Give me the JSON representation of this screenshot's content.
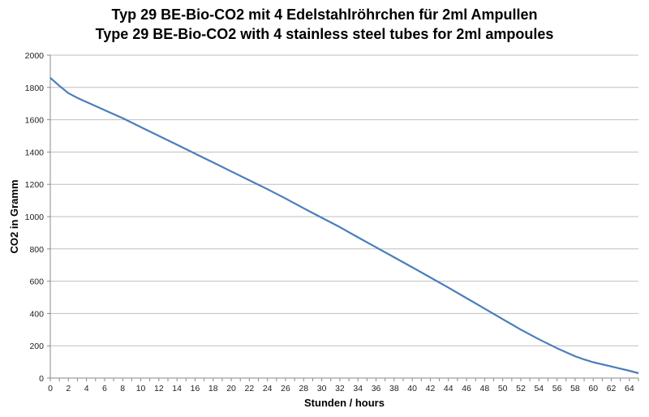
{
  "chart_data": {
    "type": "line",
    "title": "Typ 29 BE-Bio-CO2 mit 4 Edelstahlröhrchen für 2ml Ampullen",
    "subtitle": "Type 29 BE-Bio-CO2 with 4 stainless steel tubes for 2ml ampoules",
    "xlabel": "Stunden / hours",
    "ylabel": "CO2 in Gramm",
    "xlim": [
      0,
      65
    ],
    "ylim": [
      0,
      2000
    ],
    "x_ticks": [
      "0",
      "2",
      "4",
      "6",
      "8",
      "10",
      "12",
      "14",
      "16",
      "18",
      "20",
      "22",
      "24",
      "26",
      "28",
      "30",
      "32",
      "34",
      "36",
      "38",
      "40",
      "42",
      "44",
      "46",
      "48",
      "50",
      "52",
      "54",
      "56",
      "58",
      "60",
      "62",
      "64"
    ],
    "y_ticks": [
      "0",
      "200",
      "400",
      "600",
      "800",
      "1000",
      "1200",
      "1400",
      "1600",
      "1800",
      "2000"
    ],
    "grid": true,
    "legend": "none",
    "series": [
      {
        "color": "#4a7ebb",
        "x": [
          0,
          1,
          2,
          3,
          4,
          6,
          8,
          10,
          12,
          14,
          16,
          18,
          20,
          22,
          24,
          26,
          28,
          30,
          32,
          34,
          36,
          38,
          40,
          42,
          44,
          46,
          48,
          50,
          52,
          54,
          56,
          58,
          59,
          60,
          62,
          64,
          65
        ],
        "y": [
          1860,
          1810,
          1765,
          1735,
          1710,
          1660,
          1610,
          1555,
          1500,
          1445,
          1390,
          1335,
          1280,
          1225,
          1170,
          1112,
          1052,
          993,
          935,
          872,
          810,
          748,
          686,
          623,
          560,
          495,
          430,
          365,
          300,
          240,
          185,
          135,
          115,
          98,
          72,
          45,
          30
        ]
      }
    ]
  }
}
